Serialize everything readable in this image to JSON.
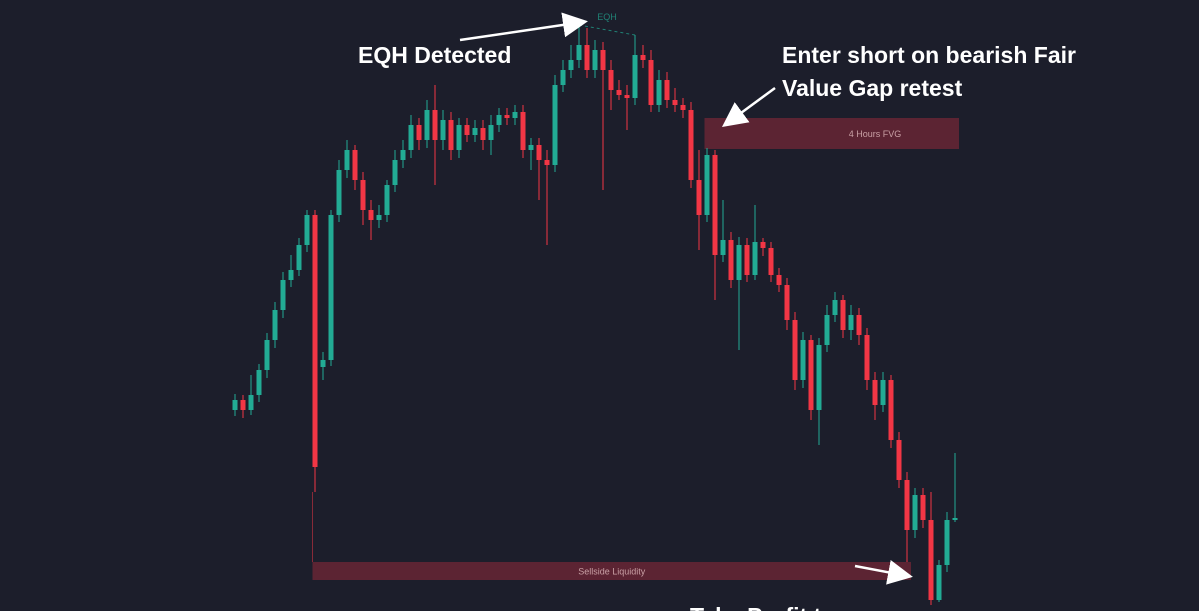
{
  "chart_data": {
    "type": "candlestick",
    "up_color": "#22ab94",
    "down_color": "#f23645",
    "ylim": [
      0,
      611
    ],
    "open": [
      201,
      211,
      201,
      216,
      241,
      271,
      301,
      331,
      341,
      366,
      396,
      244,
      251,
      396,
      441,
      461,
      431,
      401,
      391,
      396,
      426,
      451,
      461,
      486,
      471,
      501,
      471,
      491,
      461,
      486,
      476,
      483,
      471,
      486,
      496,
      493,
      499,
      461,
      466,
      451,
      446,
      526,
      541,
      551,
      566,
      541,
      561,
      541,
      521,
      516,
      513,
      556,
      551,
      506,
      531,
      511,
      506,
      501,
      431,
      396,
      456,
      356,
      371,
      331,
      366,
      336,
      369,
      363,
      336,
      326,
      291,
      231,
      271,
      201,
      266,
      296,
      311,
      281,
      296,
      276,
      231,
      206,
      231,
      171,
      131,
      81,
      116,
      91,
      11,
      46,
      91
    ],
    "high": [
      217,
      216,
      236,
      247,
      278,
      309,
      339,
      356,
      373,
      401,
      401,
      259,
      401,
      451,
      471,
      466,
      439,
      411,
      406,
      431,
      461,
      471,
      496,
      493,
      511,
      526,
      501,
      499,
      493,
      493,
      491,
      491,
      496,
      503,
      503,
      506,
      506,
      473,
      473,
      461,
      536,
      551,
      566,
      586,
      583,
      571,
      569,
      551,
      531,
      526,
      576,
      566,
      561,
      541,
      539,
      523,
      513,
      509,
      461,
      463,
      461,
      411,
      379,
      374,
      373,
      406,
      373,
      369,
      343,
      333,
      299,
      279,
      276,
      273,
      306,
      319,
      316,
      306,
      303,
      283,
      239,
      239,
      236,
      179,
      139,
      123,
      123,
      119,
      51,
      99,
      158
    ],
    "low": [
      195,
      193,
      196,
      209,
      233,
      263,
      293,
      324,
      335,
      359,
      119,
      231,
      245,
      389,
      433,
      421,
      386,
      371,
      383,
      389,
      419,
      443,
      453,
      461,
      463,
      426,
      461,
      451,
      453,
      469,
      469,
      461,
      456,
      479,
      486,
      486,
      453,
      441,
      411,
      366,
      439,
      519,
      533,
      543,
      533,
      533,
      421,
      501,
      511,
      481,
      506,
      543,
      499,
      499,
      503,
      499,
      493,
      423,
      361,
      389,
      311,
      349,
      323,
      261,
      329,
      331,
      355,
      329,
      319,
      281,
      221,
      223,
      191,
      166,
      259,
      289,
      273,
      271,
      266,
      221,
      191,
      199,
      163,
      123,
      49,
      73,
      83,
      6,
      9,
      39,
      89
    ],
    "close": [
      211,
      201,
      216,
      241,
      271,
      301,
      331,
      341,
      366,
      396,
      144,
      251,
      396,
      441,
      461,
      431,
      401,
      391,
      396,
      426,
      451,
      461,
      486,
      471,
      501,
      471,
      491,
      461,
      486,
      476,
      483,
      471,
      486,
      496,
      493,
      499,
      461,
      466,
      451,
      446,
      526,
      541,
      551,
      566,
      541,
      561,
      541,
      521,
      516,
      513,
      556,
      551,
      506,
      531,
      511,
      506,
      501,
      431,
      396,
      456,
      356,
      371,
      331,
      366,
      336,
      369,
      363,
      336,
      326,
      291,
      231,
      271,
      201,
      266,
      296,
      311,
      281,
      296,
      276,
      231,
      206,
      231,
      171,
      131,
      81,
      116,
      91,
      11,
      46,
      91,
      93
    ],
    "eqh": {
      "label": "EQH",
      "from": 43,
      "to": 50
    },
    "zones": [
      {
        "label": "4 Hours FVG",
        "top": 493,
        "bottom": 462,
        "start": 59,
        "end": 90
      },
      {
        "label": "Sellside Liquidity",
        "top": 49,
        "bottom": 31,
        "start": 10,
        "end": 84
      }
    ],
    "annotations": [
      "EQH Detected",
      "Enter short on bearish Fair",
      "Value Gap retest",
      "Take Profit t"
    ]
  }
}
